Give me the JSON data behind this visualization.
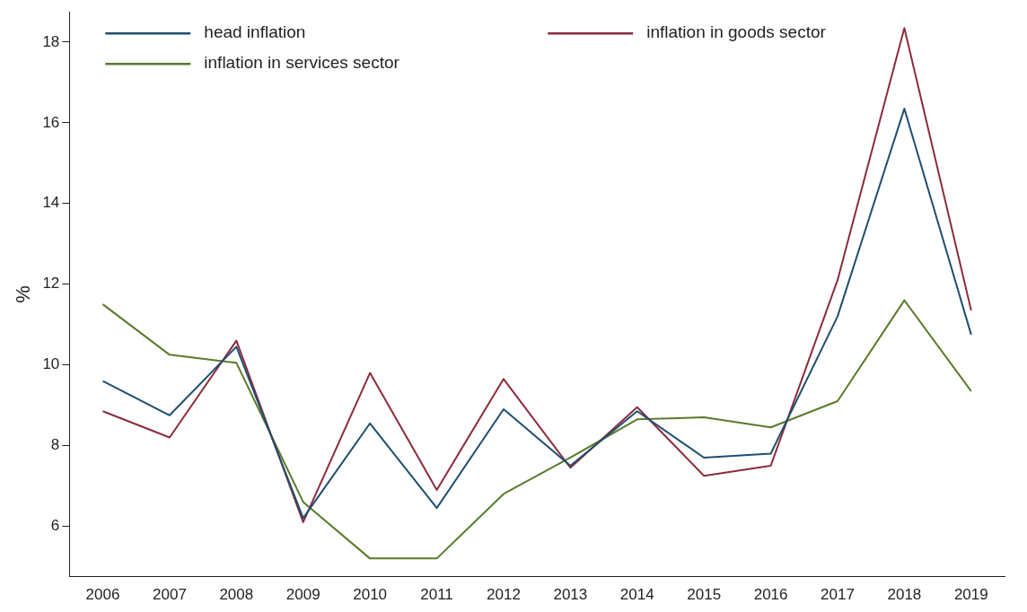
{
  "chart_data": {
    "type": "line",
    "ylabel": "%",
    "categories": [
      "2006",
      "2007",
      "2008",
      "2009",
      "2010",
      "2011",
      "2012",
      "2013",
      "2014",
      "2015",
      "2016",
      "2017",
      "2018",
      "2019"
    ],
    "series": [
      {
        "name": "head inflation",
        "color": "#1f4e6e",
        "values": [
          9.6,
          8.75,
          10.45,
          6.2,
          8.55,
          6.45,
          8.9,
          7.5,
          8.85,
          7.7,
          7.8,
          11.2,
          16.35,
          10.75
        ]
      },
      {
        "name": "inflation in goods sector",
        "color": "#8b2c3c",
        "values": [
          8.85,
          8.2,
          10.6,
          6.1,
          9.8,
          6.9,
          9.65,
          7.45,
          8.95,
          7.25,
          7.5,
          12.1,
          18.35,
          11.35
        ]
      },
      {
        "name": "inflation in services sector",
        "color": "#5a7a2a",
        "values": [
          11.5,
          10.25,
          10.05,
          6.6,
          5.2,
          5.2,
          6.8,
          7.7,
          8.65,
          8.7,
          8.45,
          9.1,
          11.6,
          9.35
        ]
      }
    ],
    "ylim": [
      4.75,
      18.75
    ],
    "yticks": [
      6,
      8,
      10,
      12,
      14,
      16,
      18
    ],
    "grid": false,
    "legend": "top left",
    "marker": "none",
    "line_style": "solid"
  }
}
